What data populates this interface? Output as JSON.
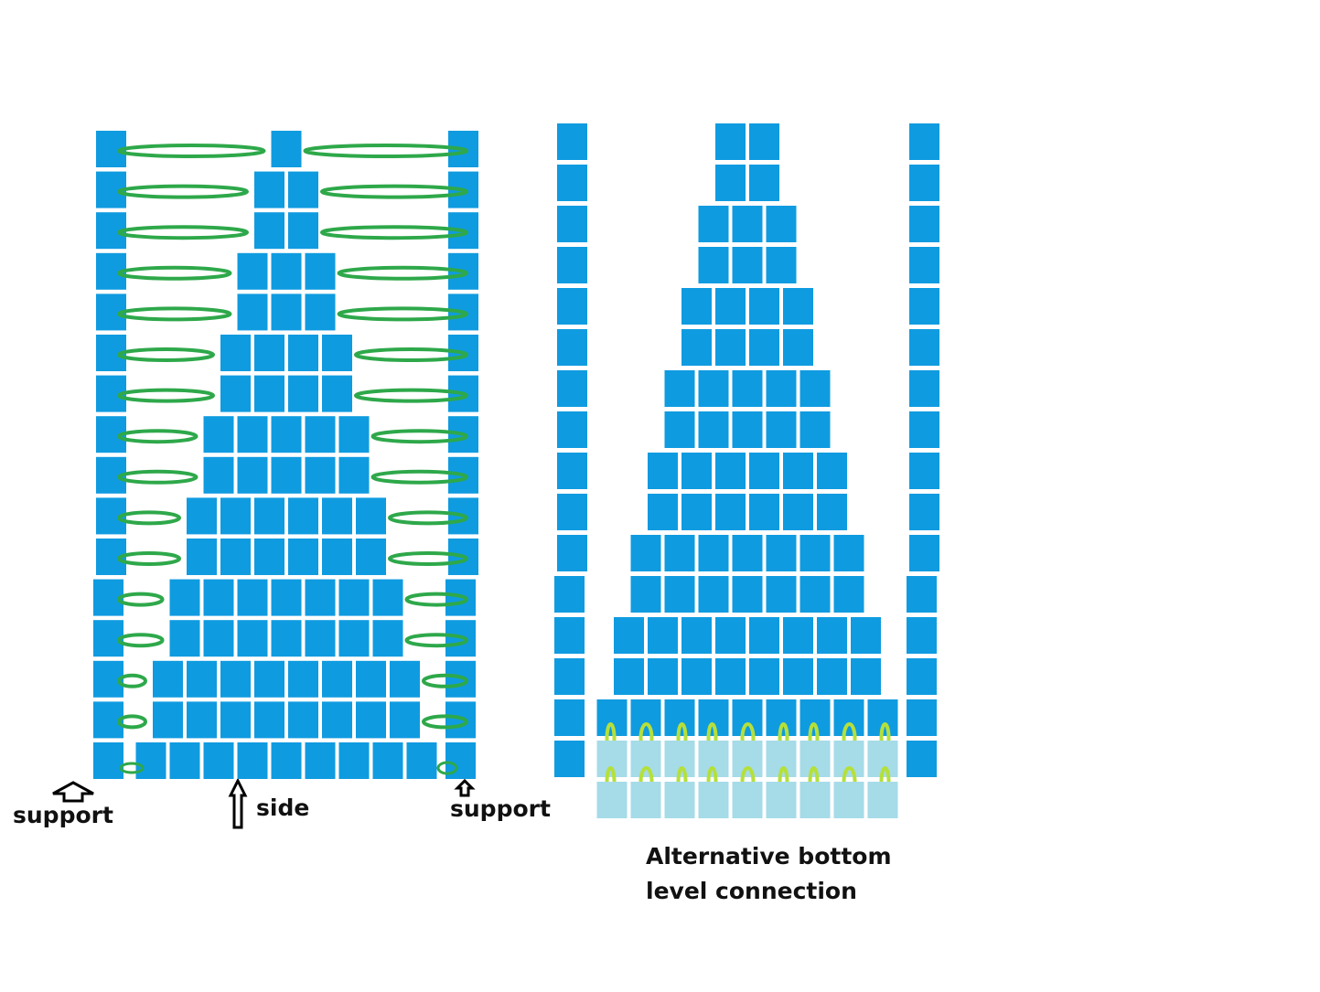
{
  "labels": {
    "support_left": "support",
    "side": "side",
    "support_right": "support",
    "caption": "Alternative bottom level connection"
  }
}
